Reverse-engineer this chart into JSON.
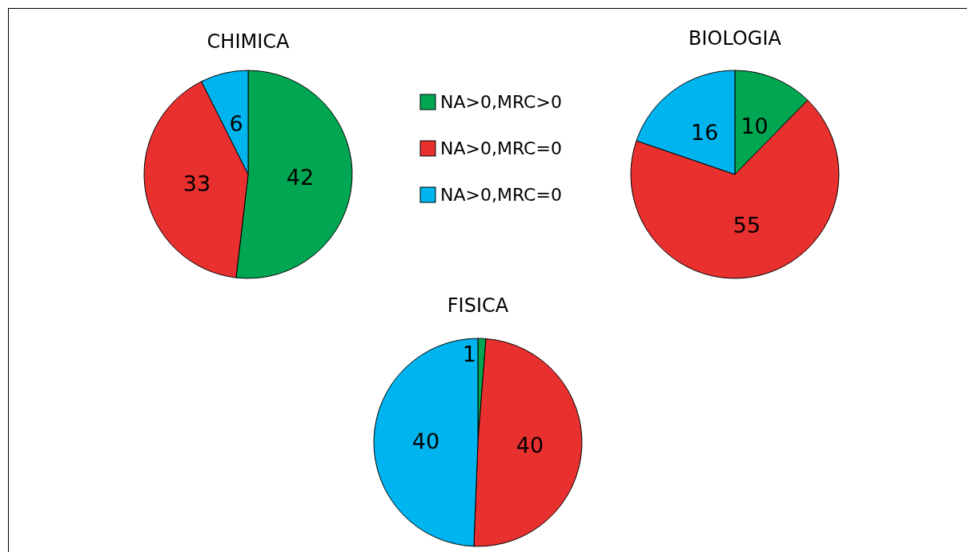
{
  "chart_data": [
    {
      "type": "pie",
      "title": "CHIMICA",
      "categories": [
        "NA>0,MRC>0",
        "NA>0,MRC=0",
        "NA>0,MRC=0"
      ],
      "values": [
        42,
        33,
        6
      ],
      "colors": [
        "#00a651",
        "#e8312f",
        "#00b4ef"
      ],
      "data_labels": true,
      "legend": "right"
    },
    {
      "type": "pie",
      "title": "BIOLOGIA",
      "categories": [
        null,
        null,
        null
      ],
      "values": [
        10,
        55,
        16
      ],
      "colors": [
        "#00a651",
        "#e8312f",
        "#00b4ef"
      ],
      "data_labels": true
    },
    {
      "type": "pie",
      "title": "FISICA",
      "categories": [
        null,
        null,
        null
      ],
      "values": [
        1,
        40,
        40
      ],
      "colors": [
        "#00a651",
        "#e8312f",
        "#00b4ef"
      ],
      "data_labels": true
    }
  ]
}
